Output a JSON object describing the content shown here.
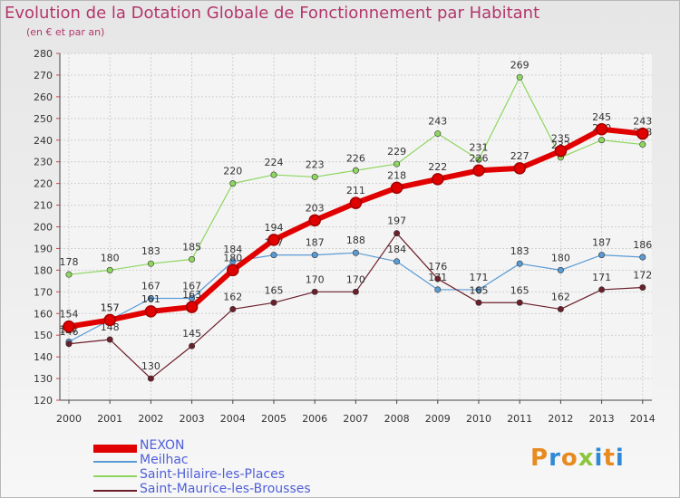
{
  "page": {
    "title": "Evolution de la Dotation Globale de Fonctionnement par Habitant",
    "subtitle": "(en € et par an)",
    "logo": "Proxiti"
  },
  "chart_data": {
    "type": "line",
    "title": "Evolution de la Dotation Globale de Fonctionnement par Habitant",
    "subtitle": "(en € et par an)",
    "xlabel": "",
    "ylabel": "",
    "x": [
      "2000",
      "2001",
      "2002",
      "2003",
      "2004",
      "2005",
      "2006",
      "2007",
      "2008",
      "2009",
      "2010",
      "2011",
      "2012",
      "2013",
      "2014"
    ],
    "ylim": [
      120,
      280
    ],
    "yticks": [
      120,
      130,
      140,
      150,
      160,
      170,
      180,
      190,
      200,
      210,
      220,
      230,
      240,
      250,
      260,
      270,
      280
    ],
    "grid": true,
    "legend_position": "bottom-left",
    "series": [
      {
        "name": "Saint-Hilaire-les-Places",
        "color": "#8ed660",
        "width": 1.2,
        "values": [
          178,
          180,
          183,
          185,
          220,
          224,
          223,
          226,
          229,
          243,
          231,
          269,
          232,
          240,
          238
        ]
      },
      {
        "name": "Meilhac",
        "color": "#5b9bd5",
        "width": 1.2,
        "values": [
          147,
          157,
          167,
          167,
          184,
          187,
          187,
          188,
          184,
          171,
          171,
          183,
          180,
          187,
          186
        ]
      },
      {
        "name": "Saint-Maurice-les-Brousses",
        "color": "#6b1f2a",
        "width": 1.2,
        "values": [
          146,
          148,
          130,
          145,
          162,
          165,
          170,
          170,
          197,
          176,
          165,
          165,
          162,
          171,
          172
        ]
      },
      {
        "name": "NEXON",
        "color": "#e10000",
        "width": 6,
        "values": [
          154,
          157,
          161,
          163,
          180,
          194,
          203,
          211,
          218,
          222,
          226,
          227,
          235,
          245,
          243
        ]
      }
    ]
  }
}
